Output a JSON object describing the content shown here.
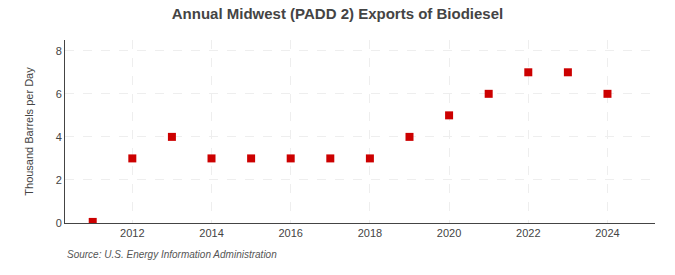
{
  "chart_data": {
    "type": "scatter",
    "title": "Annual Midwest (PADD 2) Exports of Biodiesel",
    "ylabel": "Thousand Barrels per Day",
    "source": "Source: U.S. Energy Information Administration",
    "x": [
      2011,
      2012,
      2013,
      2014,
      2015,
      2016,
      2017,
      2018,
      2019,
      2020,
      2021,
      2022,
      2023,
      2024
    ],
    "values": [
      0.05,
      3.0,
      4.0,
      3.0,
      3.0,
      3.0,
      3.0,
      3.0,
      4.0,
      5.0,
      6.0,
      7.0,
      7.0,
      6.0
    ],
    "color": "#cc0000",
    "marker": "square",
    "xlim": [
      2010.3,
      2025.2
    ],
    "xticks": [
      2012,
      2014,
      2016,
      2018,
      2020,
      2022,
      2024
    ],
    "ylim": [
      0,
      8.5
    ],
    "yticks": [
      0,
      2,
      4,
      6,
      8
    ],
    "grid": true
  }
}
